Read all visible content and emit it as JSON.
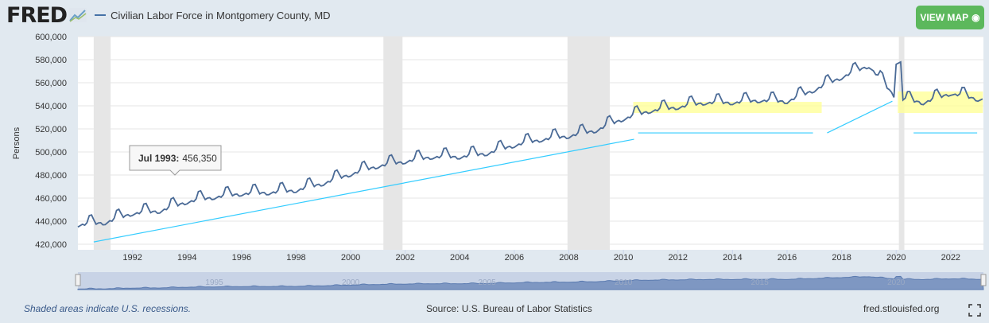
{
  "header": {
    "logo": "FRED",
    "series_label": "Civilian Labor Force in Montgomery County, MD",
    "view_map": "VIEW MAP"
  },
  "footer": {
    "recession_note": "Shaded areas indicate U.S. recessions.",
    "source": "Source: U.S. Bureau of Labor Statistics",
    "site": "fred.stlouisfed.org"
  },
  "tooltip": {
    "date": "Jul 1993:",
    "value": "456,350"
  },
  "colors": {
    "line": "#4572a7",
    "annotation": "#33ccff",
    "highlight": "#ffff99",
    "recession": "#e6e6e6",
    "button": "#5cb85c"
  },
  "chart_data": {
    "type": "line",
    "title": "Civilian Labor Force in Montgomery County, MD",
    "ylabel": "Persons",
    "xlabel": "",
    "ylim": [
      420000,
      600000
    ],
    "xlim": [
      1990.0,
      2023.2
    ],
    "yticks": [
      "420,000",
      "440,000",
      "460,000",
      "480,000",
      "500,000",
      "520,000",
      "540,000",
      "560,000",
      "580,000",
      "600,000"
    ],
    "xticks": [
      "1992",
      "1994",
      "1996",
      "1998",
      "2000",
      "2002",
      "2004",
      "2006",
      "2008",
      "2010",
      "2012",
      "2014",
      "2016",
      "2018",
      "2020",
      "2022"
    ],
    "navigator_ticks": [
      "1995",
      "2000",
      "2005",
      "2010",
      "2015",
      "2020"
    ],
    "annual_avg": {
      "1990": 438000,
      "1991": 440000,
      "1992": 448000,
      "1993": 450000,
      "1994": 458000,
      "1995": 462000,
      "1996": 465000,
      "1997": 466000,
      "1998": 468000,
      "1999": 474000,
      "2000": 482000,
      "2001": 489000,
      "2002": 493000,
      "2003": 497000,
      "2004": 497000,
      "2005": 500000,
      "2006": 507000,
      "2007": 512000,
      "2008": 515000,
      "2009": 520000,
      "2010": 530000,
      "2011": 537000,
      "2012": 540000,
      "2013": 544000,
      "2014": 544000,
      "2015": 546000,
      "2016": 545000,
      "2017": 555000,
      "2018": 566000,
      "2019": 576000,
      "2020": 548000,
      "2021": 544000,
      "2022": 552000,
      "2023": 547000
    },
    "seasonal_offsets": [
      -3000,
      -2000,
      -1000,
      -2000,
      0,
      6000,
      6350,
      2000,
      -2000,
      -1000,
      -1000,
      -3000
    ],
    "recessions": [
      [
        1990.58,
        1991.2
      ],
      [
        2001.2,
        2001.9
      ],
      [
        2007.95,
        2009.5
      ],
      [
        2020.1,
        2020.3
      ]
    ],
    "annotations": {
      "lines": [
        [
          [
            1990.58,
            422000
          ],
          [
            2010.39,
            511000
          ]
        ],
        [
          [
            2010.54,
            516500
          ],
          [
            2016.95,
            516500
          ]
        ],
        [
          [
            2017.47,
            516500
          ],
          [
            2019.86,
            544000
          ]
        ],
        [
          [
            2020.64,
            516500
          ],
          [
            2022.97,
            516500
          ]
        ]
      ],
      "highlights": [
        [
          [
            2010.36,
            533800
          ],
          [
            2017.27,
            543400
          ]
        ],
        [
          [
            2020.06,
            533800
          ],
          [
            2023.18,
            552400
          ]
        ]
      ]
    }
  }
}
